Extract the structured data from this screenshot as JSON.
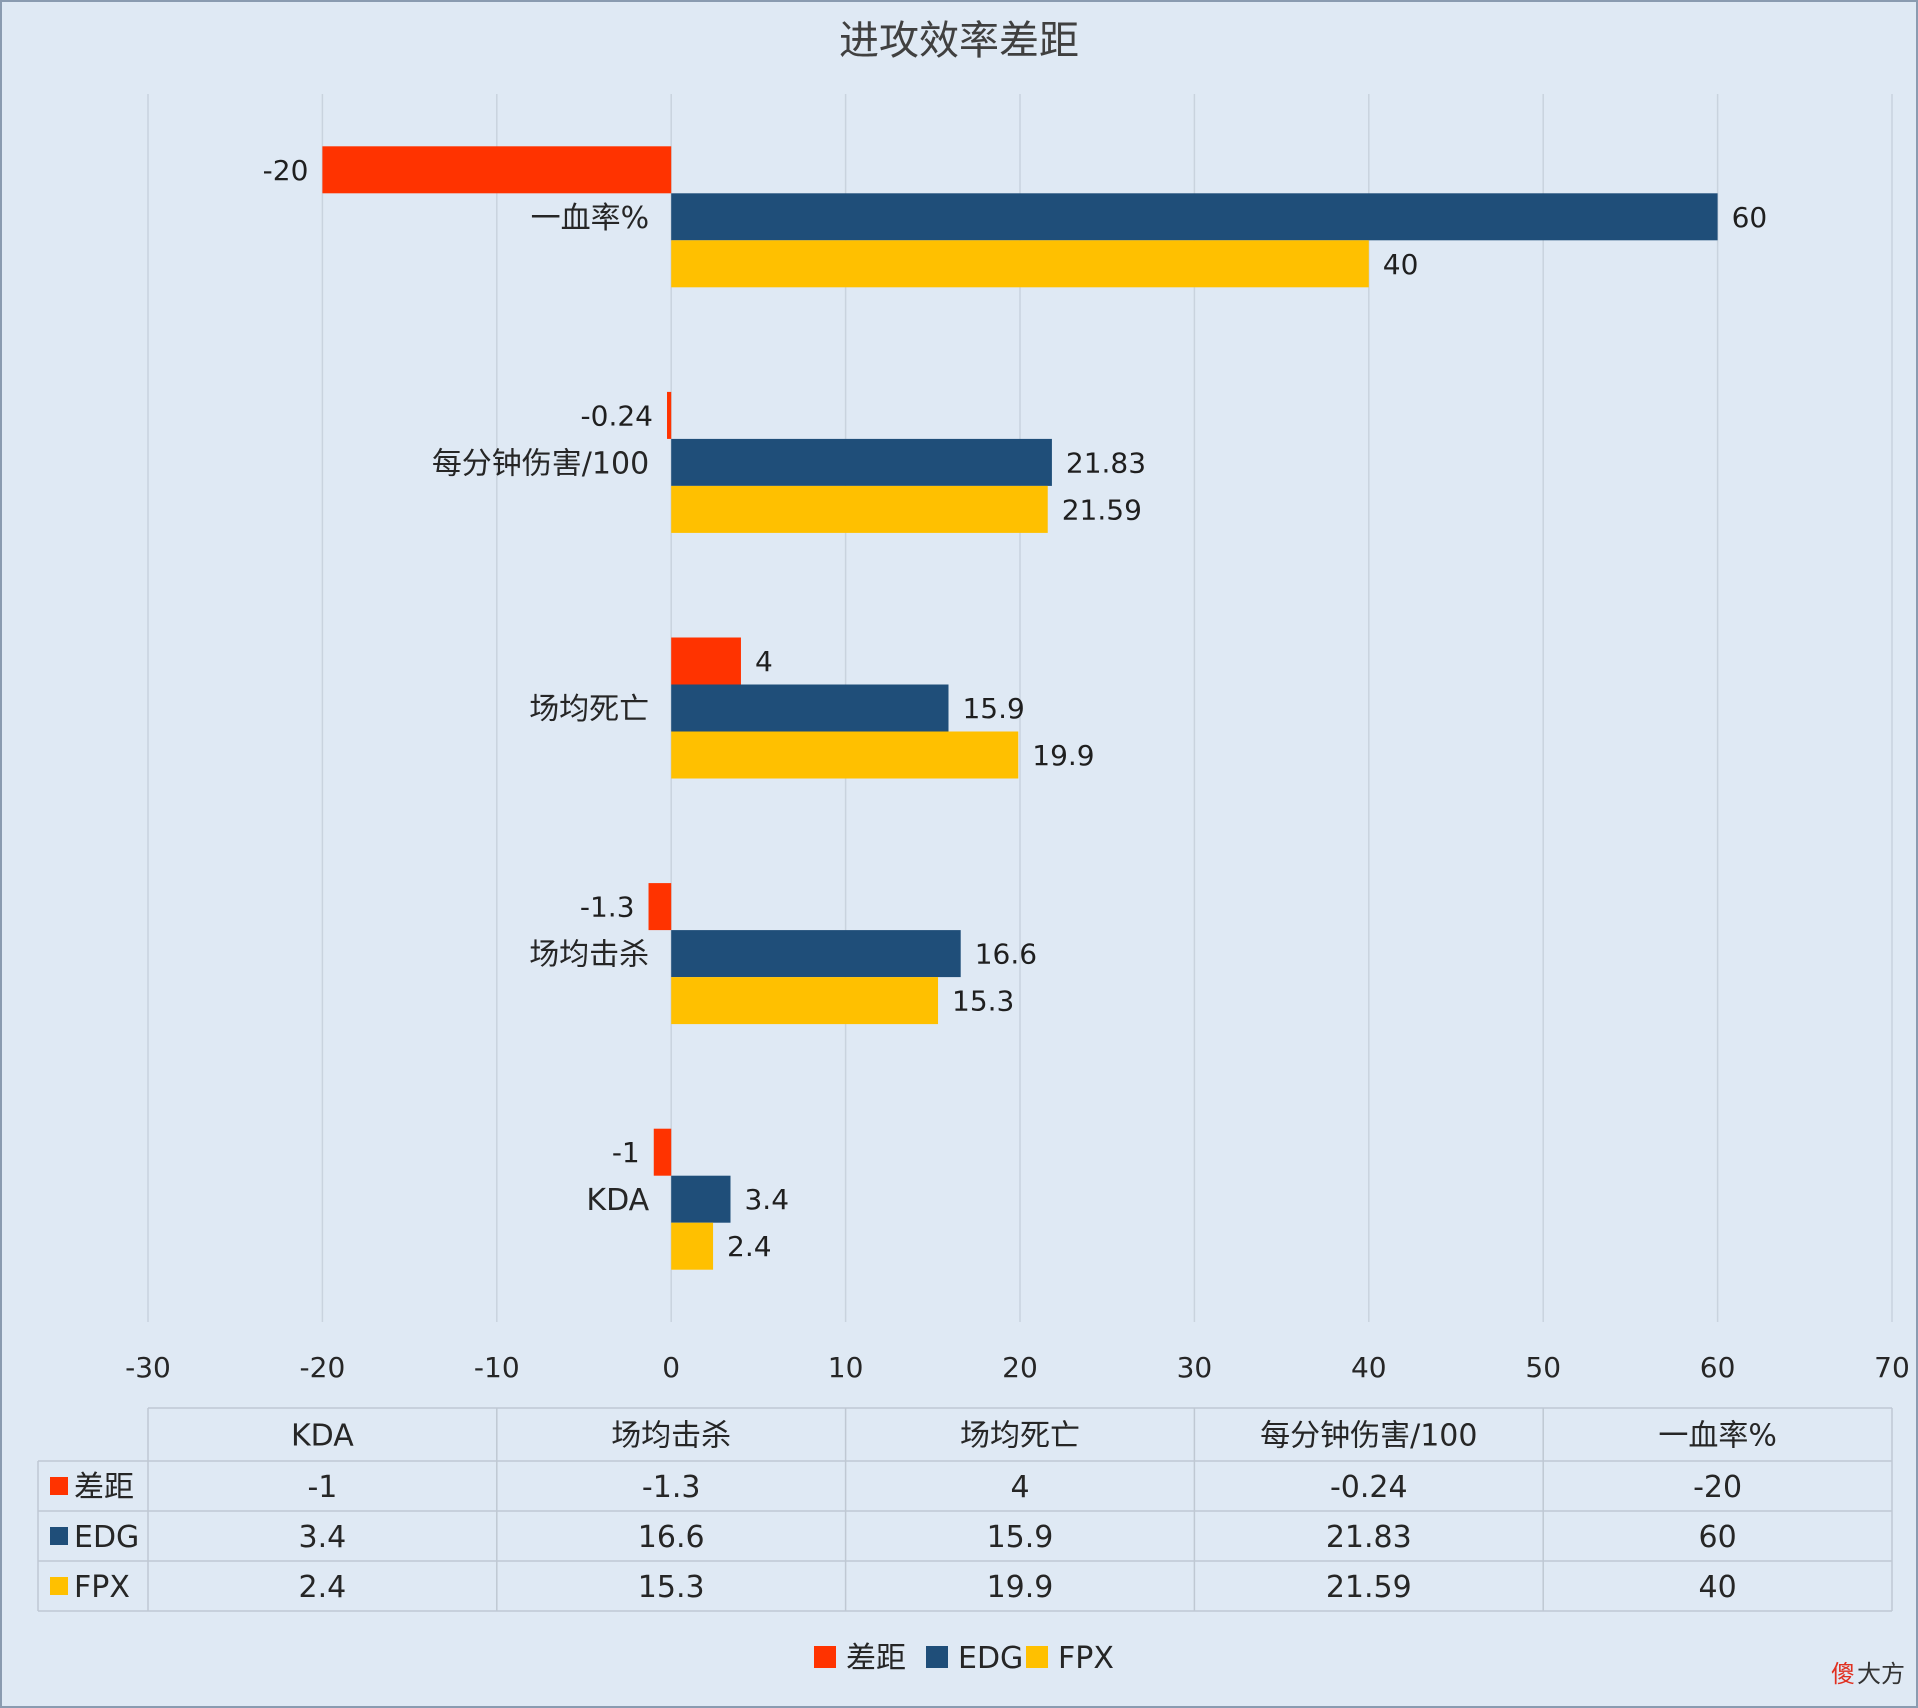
{
  "chart_data": {
    "type": "bar",
    "orientation": "horizontal",
    "title": "进攻效率差距",
    "categories": [
      "KDA",
      "场均击杀",
      "场均死亡",
      "每分钟伤害/100",
      "一血率%"
    ],
    "series": [
      {
        "name": "差距",
        "color": "#ff3300",
        "values": [
          -1,
          -1.3,
          4,
          -0.24,
          -20
        ],
        "labels": [
          "-1",
          "-1.3",
          "4",
          "-0.24",
          "-20"
        ]
      },
      {
        "name": "EDG",
        "color": "#1f4e79",
        "values": [
          3.4,
          16.6,
          15.9,
          21.83,
          60
        ],
        "labels": [
          "3.4",
          "16.6",
          "15.9",
          "21.83",
          "60"
        ]
      },
      {
        "name": "FPX",
        "color": "#ffc000",
        "values": [
          2.4,
          15.3,
          19.9,
          21.59,
          40
        ],
        "labels": [
          "2.4",
          "15.3",
          "19.9",
          "21.59",
          "40"
        ]
      }
    ],
    "xlim": [
      -30,
      70
    ],
    "xticks": [
      -30,
      -20,
      -10,
      0,
      10,
      20,
      30,
      40,
      50,
      60,
      70
    ],
    "xtick_labels": [
      "-30",
      "-20",
      "-10",
      "0",
      "10",
      "20",
      "30",
      "40",
      "50",
      "60",
      "70"
    ],
    "grid": true,
    "data_table": true,
    "legend_position": "bottom"
  },
  "watermark": {
    "part1": "傻",
    "part2": "大方",
    "color1": "#e03020",
    "color2": "#333333"
  }
}
